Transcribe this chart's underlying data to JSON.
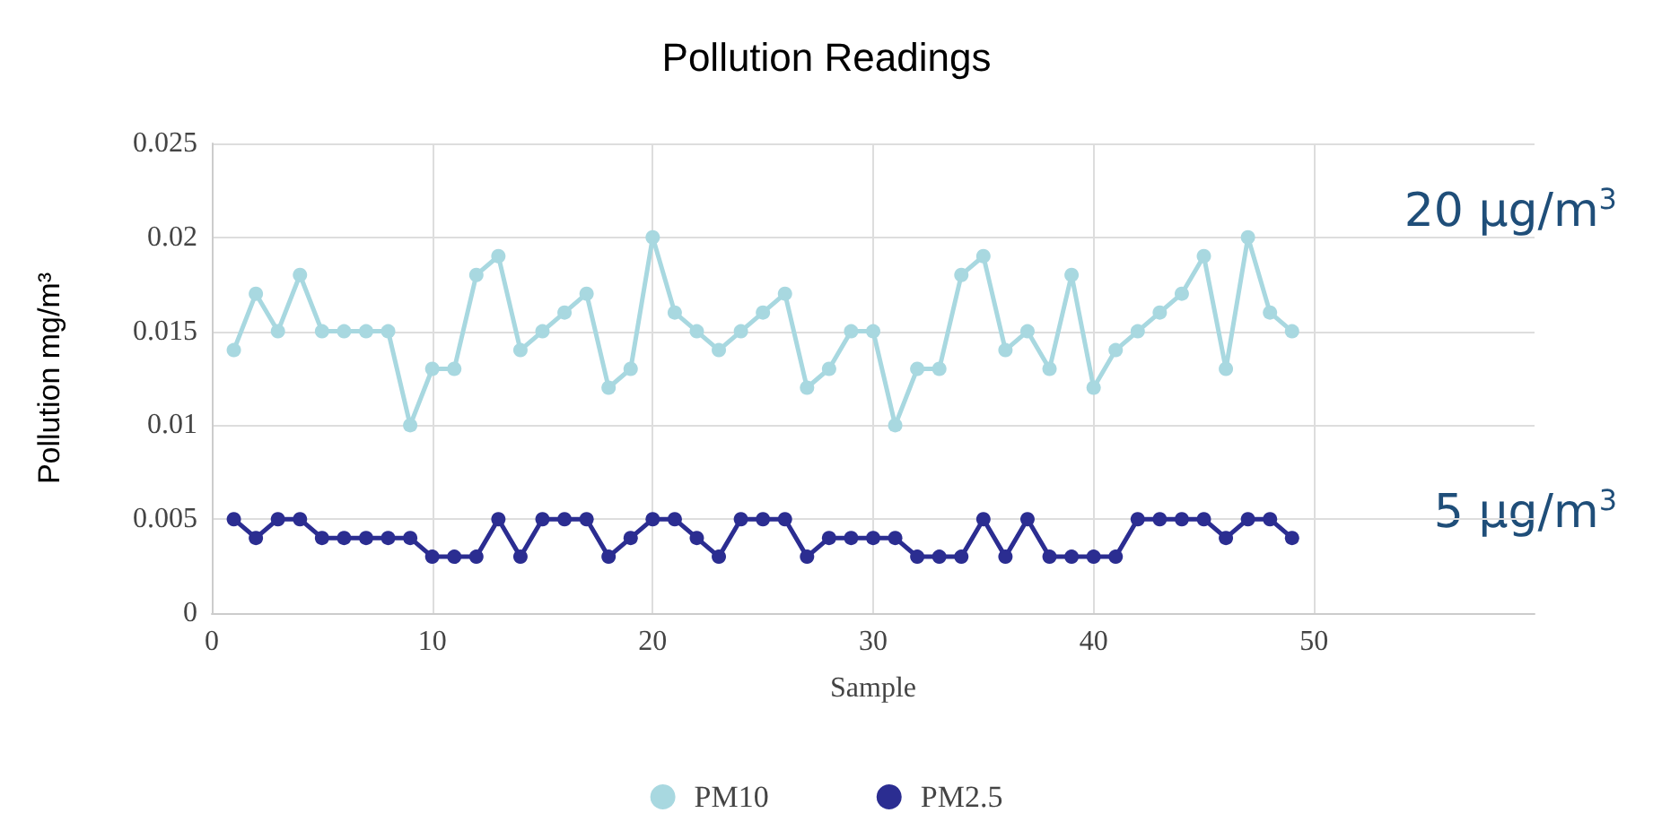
{
  "chart_data": {
    "type": "line",
    "title": "Pollution Readings",
    "xlabel": "Sample",
    "ylabel": "Pollution mg/m³",
    "x": [
      1,
      2,
      3,
      4,
      5,
      6,
      7,
      8,
      9,
      10,
      11,
      12,
      13,
      14,
      15,
      16,
      17,
      18,
      19,
      20,
      21,
      22,
      23,
      24,
      25,
      26,
      27,
      28,
      29,
      30,
      31,
      32,
      33,
      34,
      35,
      36,
      37,
      38,
      39,
      40,
      41,
      42,
      43,
      44,
      45,
      46,
      47,
      48,
      49
    ],
    "series": [
      {
        "name": "PM10",
        "color": "#a8d8e0",
        "values": [
          0.014,
          0.017,
          0.015,
          0.018,
          0.015,
          0.015,
          0.015,
          0.015,
          0.01,
          0.013,
          0.013,
          0.018,
          0.019,
          0.014,
          0.015,
          0.016,
          0.017,
          0.012,
          0.013,
          0.02,
          0.016,
          0.015,
          0.014,
          0.015,
          0.016,
          0.017,
          0.012,
          0.013,
          0.015,
          0.015,
          0.01,
          0.013,
          0.013,
          0.018,
          0.019,
          0.014,
          0.015,
          0.013,
          0.018,
          0.012,
          0.014,
          0.015,
          0.016,
          0.017,
          0.019,
          0.013,
          0.02,
          0.016,
          0.015
        ]
      },
      {
        "name": "PM2.5",
        "color": "#2b2d91",
        "values": [
          0.005,
          0.004,
          0.005,
          0.005,
          0.004,
          0.004,
          0.004,
          0.004,
          0.004,
          0.003,
          0.003,
          0.003,
          0.005,
          0.003,
          0.005,
          0.005,
          0.005,
          0.003,
          0.004,
          0.005,
          0.005,
          0.004,
          0.003,
          0.005,
          0.005,
          0.005,
          0.003,
          0.004,
          0.004,
          0.004,
          0.004,
          0.003,
          0.003,
          0.003,
          0.005,
          0.003,
          0.005,
          0.003,
          0.003,
          0.003,
          0.003,
          0.005,
          0.005,
          0.005,
          0.005,
          0.004,
          0.005,
          0.005,
          0.004
        ]
      }
    ],
    "xlim": [
      0,
      60
    ],
    "xticks": [
      0,
      10,
      20,
      30,
      40,
      50
    ],
    "ylim": [
      0,
      0.025
    ],
    "yticks": [
      0,
      0.005,
      0.01,
      0.015,
      0.02,
      0.025
    ],
    "annotations": [
      "20 μg/m$^{3}$",
      "5 μg/m$^{3}$"
    ],
    "grid": true,
    "legend": "bottom",
    "marker": "circle",
    "line_style": "solid"
  }
}
